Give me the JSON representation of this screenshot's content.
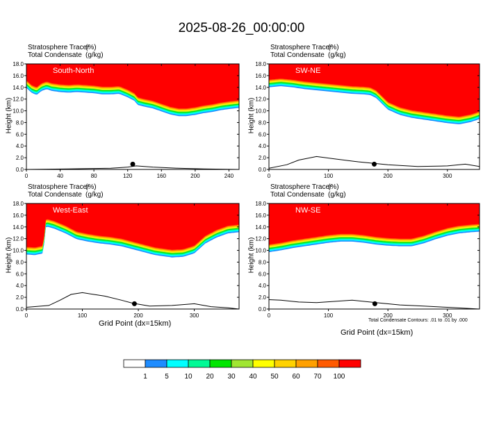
{
  "title": "2025-08-26_00:00:00",
  "variable_line1": "Stratosphere Tracer",
  "unit_line1": "(%)",
  "variable_line2": "Total Condensate",
  "unit_line2": "(g/kg)",
  "ylabel": "Height (km)",
  "xlabel": "Grid Point (dx=15km)",
  "contour_note": "Total Condensate Contours: .01 to .01 by .000",
  "colors": {
    "levels": [
      "#ffffff",
      "#1e8cff",
      "#00ffff",
      "#00fa96",
      "#00e600",
      "#a0e632",
      "#ffff00",
      "#ffd200",
      "#ffa000",
      "#ff5a00",
      "#ff0000"
    ],
    "contour": "#000000"
  },
  "colorbar": {
    "labels": [
      "1",
      "5",
      "10",
      "20",
      "30",
      "40",
      "50",
      "60",
      "70",
      "100"
    ]
  },
  "chart_data": [
    {
      "type": "heatmap",
      "panel": "south-north",
      "region_label": "South-North",
      "xlim": [
        0,
        252
      ],
      "ylim": [
        0,
        18
      ],
      "x_ticks": [
        "0",
        "40",
        "80",
        "120",
        "160",
        "200",
        "240"
      ],
      "x_tick_values": [
        0,
        40,
        80,
        120,
        160,
        200,
        240
      ],
      "y_ticks": [
        "0.0",
        "2.0",
        "4.0",
        "6.0",
        "8.0",
        "10.0",
        "12.0",
        "14.0",
        "16.0",
        "18.0"
      ],
      "tropopause_profile": {
        "x": [
          0,
          6,
          12,
          18,
          24,
          30,
          40,
          50,
          60,
          70,
          80,
          90,
          100,
          110,
          120,
          128,
          132,
          140,
          150,
          160,
          170,
          180,
          190,
          200,
          210,
          220,
          230,
          240,
          252
        ],
        "y": [
          15.2,
          14.4,
          14.0,
          14.7,
          15.0,
          14.7,
          14.5,
          14.4,
          14.5,
          14.4,
          14.3,
          14.1,
          14.1,
          14.2,
          13.6,
          13.0,
          12.3,
          12.0,
          11.7,
          11.2,
          10.7,
          10.4,
          10.4,
          10.6,
          10.9,
          11.1,
          11.4,
          11.6,
          11.8
        ]
      },
      "terrain": {
        "x": [
          0,
          50,
          100,
          110,
          120,
          130,
          150,
          180,
          210,
          252
        ],
        "y": [
          0,
          0.1,
          0.2,
          0.3,
          0.4,
          0.6,
          0.4,
          0.2,
          0.1,
          0
        ]
      },
      "marker_x": 126
    },
    {
      "type": "heatmap",
      "panel": "sw-ne",
      "region_label": "SW-NE",
      "xlim": [
        0,
        354
      ],
      "ylim": [
        0,
        18
      ],
      "x_ticks": [
        "0",
        "100",
        "200",
        "300"
      ],
      "x_tick_values": [
        0,
        100,
        200,
        300
      ],
      "y_ticks": [
        "0.0",
        "2.0",
        "4.0",
        "6.0",
        "8.0",
        "10.0",
        "12.0",
        "14.0",
        "16.0",
        "18.0"
      ],
      "tropopause_profile": {
        "x": [
          0,
          20,
          40,
          60,
          80,
          100,
          120,
          140,
          160,
          170,
          180,
          190,
          200,
          220,
          240,
          260,
          280,
          300,
          320,
          340,
          354
        ],
        "y": [
          15.3,
          15.5,
          15.3,
          15.0,
          14.8,
          14.6,
          14.4,
          14.2,
          14.1,
          14.0,
          13.5,
          12.5,
          11.5,
          10.6,
          10.1,
          9.8,
          9.5,
          9.2,
          9.0,
          9.4,
          9.9
        ]
      },
      "terrain": {
        "x": [
          0,
          30,
          50,
          80,
          110,
          150,
          200,
          250,
          300,
          330,
          354
        ],
        "y": [
          0.2,
          0.8,
          1.6,
          2.2,
          1.8,
          1.3,
          0.8,
          0.5,
          0.6,
          0.9,
          0.5
        ]
      },
      "marker_x": 177
    },
    {
      "type": "heatmap",
      "panel": "west-east",
      "region_label": "West-East",
      "xlim": [
        0,
        380
      ],
      "ylim": [
        0,
        18
      ],
      "x_ticks": [
        "0",
        "100",
        "200",
        "300"
      ],
      "x_tick_values": [
        0,
        100,
        200,
        300
      ],
      "y_ticks": [
        "0.0",
        "2.0",
        "4.0",
        "6.0",
        "8.0",
        "10.0",
        "12.0",
        "14.0",
        "16.0",
        "18.0"
      ],
      "tropopause_profile": {
        "x": [
          0,
          15,
          30,
          35,
          50,
          70,
          90,
          110,
          130,
          150,
          170,
          190,
          210,
          230,
          260,
          280,
          300,
          320,
          340,
          360,
          380
        ],
        "y": [
          10.6,
          10.5,
          10.8,
          15.4,
          15.0,
          14.2,
          13.2,
          12.8,
          12.5,
          12.3,
          12.0,
          11.5,
          11.0,
          10.5,
          10.1,
          10.2,
          10.8,
          12.5,
          13.5,
          14.2,
          14.4
        ]
      },
      "terrain": {
        "x": [
          0,
          40,
          60,
          80,
          100,
          140,
          170,
          190,
          220,
          260,
          300,
          330,
          360,
          380
        ],
        "y": [
          0.3,
          0.6,
          1.5,
          2.5,
          2.8,
          2.2,
          1.5,
          1.0,
          0.5,
          0.6,
          0.9,
          0.4,
          0.2,
          0
        ]
      },
      "marker_x": 193
    },
    {
      "type": "heatmap",
      "panel": "nw-se",
      "region_label": "NW-SE",
      "xlim": [
        0,
        354
      ],
      "ylim": [
        0,
        18
      ],
      "x_ticks": [
        "0",
        "100",
        "200",
        "300"
      ],
      "x_tick_values": [
        0,
        100,
        200,
        300
      ],
      "y_ticks": [
        "0.0",
        "2.0",
        "4.0",
        "6.0",
        "8.0",
        "10.0",
        "12.0",
        "14.0",
        "16.0",
        "18.0"
      ],
      "tropopause_profile": {
        "x": [
          0,
          20,
          40,
          60,
          80,
          100,
          120,
          140,
          160,
          180,
          200,
          220,
          240,
          260,
          280,
          300,
          320,
          340,
          354
        ],
        "y": [
          11.0,
          11.3,
          11.7,
          12.0,
          12.3,
          12.6,
          12.8,
          12.8,
          12.6,
          12.3,
          12.1,
          12.0,
          12.0,
          12.5,
          13.2,
          13.8,
          14.2,
          14.4,
          14.5
        ]
      },
      "terrain": {
        "x": [
          0,
          20,
          50,
          80,
          110,
          140,
          170,
          190,
          220,
          260,
          300,
          354
        ],
        "y": [
          1.6,
          1.5,
          1.2,
          1.1,
          1.3,
          1.5,
          1.2,
          1.0,
          0.7,
          0.5,
          0.3,
          0
        ]
      },
      "marker_x": 178
    }
  ]
}
